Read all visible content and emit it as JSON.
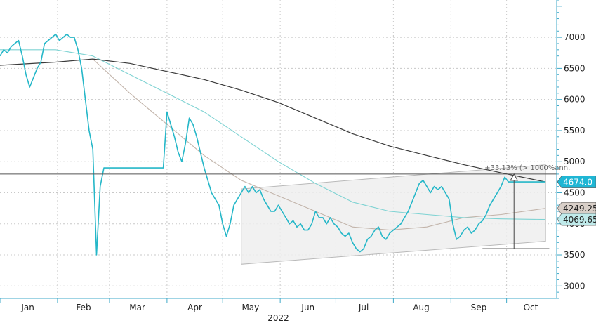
{
  "chart_data": {
    "type": "line",
    "title": "",
    "xlabel": "2022",
    "ylabel": "",
    "ylim": [
      2800,
      7600
    ],
    "y_ticks": [
      3000,
      3500,
      4000,
      4500,
      5000,
      5500,
      6000,
      6500,
      7000
    ],
    "x_tick_labels": [
      "Jan",
      "Feb",
      "Mar",
      "Apr",
      "May",
      "Jun",
      "Jul",
      "Aug",
      "Sep",
      "Oct"
    ],
    "year_label": "2022",
    "grid": true,
    "colors": {
      "price": "#25b7c8",
      "ma_long": "#3a3a3a",
      "ma_mid": "#7fd3d3",
      "ma_short": "#c2b4aa",
      "channel": "#b9b9b9",
      "axis": "#3fa9c8",
      "tag_price_bg": "#1fb6d4",
      "tag_mid_bg": "#d8cfc8",
      "tag_ma_bg": "#bfeaea"
    },
    "series": [
      {
        "key": "price",
        "x": [
          0,
          2,
          4,
          6,
          8,
          10,
          12,
          14,
          16,
          18,
          20,
          22,
          24,
          26,
          28,
          30,
          32,
          34,
          36,
          38,
          40,
          42,
          44,
          46,
          48,
          50,
          52,
          54,
          56,
          58,
          60,
          62,
          64,
          66,
          68,
          70,
          72,
          74,
          76,
          78,
          80,
          82,
          84,
          86,
          88,
          90,
          92,
          94,
          96,
          98,
          100,
          102,
          104,
          106,
          108,
          110,
          112,
          114,
          116,
          118,
          120,
          122,
          124,
          126,
          128,
          130,
          132,
          134,
          136,
          138,
          140,
          142,
          144,
          146,
          148,
          150,
          152,
          154,
          156,
          158,
          160,
          162,
          164,
          166,
          168,
          170,
          172,
          174,
          176,
          178,
          180,
          182,
          184,
          186,
          188,
          190,
          192,
          194,
          196,
          198,
          200,
          202,
          204,
          206,
          208,
          210,
          212,
          214,
          216,
          218,
          220,
          222,
          224,
          226,
          228,
          230,
          232,
          234,
          236,
          238,
          240,
          242,
          244,
          246,
          248,
          250,
          252,
          254,
          256,
          258,
          260,
          262,
          264,
          266,
          268,
          270,
          272,
          274,
          276,
          278,
          280,
          282,
          284,
          286,
          288,
          290,
          292,
          294
        ],
        "values": [
          6700,
          6800,
          6750,
          6850,
          6900,
          6950,
          6700,
          6400,
          6200,
          6350,
          6500,
          6600,
          6900,
          6950,
          7000,
          7050,
          6950,
          7000,
          7050,
          7000,
          7000,
          6800,
          6500,
          6000,
          5500,
          5200,
          3500,
          4600,
          4900,
          4900,
          4900,
          4900,
          4900,
          4900,
          4900,
          4900,
          4900,
          4900,
          4900,
          4900,
          4900,
          4900,
          4900,
          4900,
          4900,
          5800,
          5600,
          5400,
          5150,
          5000,
          5300,
          5700,
          5600,
          5400,
          5150,
          4900,
          4700,
          4500,
          4400,
          4300,
          4000,
          3800,
          4000,
          4300,
          4400,
          4500,
          4600,
          4500,
          4600,
          4500,
          4550,
          4400,
          4300,
          4200,
          4200,
          4300,
          4200,
          4100,
          4000,
          4050,
          3950,
          4000,
          3900,
          3900,
          4000,
          4200,
          4100,
          4100,
          4000,
          4100,
          4000,
          3950,
          3850,
          3800,
          3850,
          3700,
          3600,
          3550,
          3600,
          3750,
          3800,
          3900,
          3950,
          3800,
          3750,
          3850,
          3900,
          3950,
          4000,
          4100,
          4200,
          4350,
          4500,
          4650,
          4700,
          4600,
          4500,
          4600,
          4550,
          4600,
          4500,
          4400,
          4000,
          3750,
          3800,
          3900,
          3950,
          3850,
          3900,
          4000,
          4050,
          4150,
          4300,
          4400,
          4500,
          4600,
          4750,
          4674,
          4674,
          4674,
          4674,
          4674,
          4674,
          4674,
          4674,
          4674,
          4674,
          4674
        ]
      },
      {
        "key": "ma_long",
        "x": [
          0,
          30,
          50,
          70,
          90,
          110,
          130,
          150,
          170,
          190,
          210,
          230,
          250,
          270,
          294
        ],
        "values": [
          6550,
          6600,
          6650,
          6580,
          6450,
          6320,
          6150,
          5950,
          5700,
          5450,
          5250,
          5100,
          4950,
          4820,
          4674
        ]
      },
      {
        "key": "ma_mid",
        "x": [
          0,
          30,
          50,
          70,
          90,
          110,
          130,
          150,
          170,
          190,
          210,
          230,
          250,
          270,
          294
        ],
        "values": [
          6800,
          6800,
          6700,
          6400,
          6100,
          5800,
          5400,
          5000,
          4650,
          4350,
          4200,
          4150,
          4100,
          4080,
          4069.65
        ]
      },
      {
        "key": "ma_short",
        "x": [
          50,
          70,
          90,
          110,
          130,
          150,
          170,
          190,
          210,
          230,
          250,
          270,
          294
        ],
        "values": [
          6650,
          6100,
          5600,
          5100,
          4700,
          4450,
          4200,
          3950,
          3900,
          3950,
          4100,
          4150,
          4249.25
        ]
      }
    ],
    "channel": {
      "x": [
        130,
        294
      ],
      "upper": [
        4560,
        4950
      ],
      "lower": [
        3350,
        3720
      ]
    },
    "reference_line": 4800,
    "support_line": {
      "x": [
        260,
        296
      ],
      "value": 3600
    },
    "arrow": {
      "x": 277,
      "from": 3600,
      "to": 4800
    },
    "annotation": "+33.13% (> 1000%ann.",
    "last_values": {
      "price": "4674.0",
      "ma_short": "4249.25",
      "ma_mid": "4069.65"
    }
  }
}
